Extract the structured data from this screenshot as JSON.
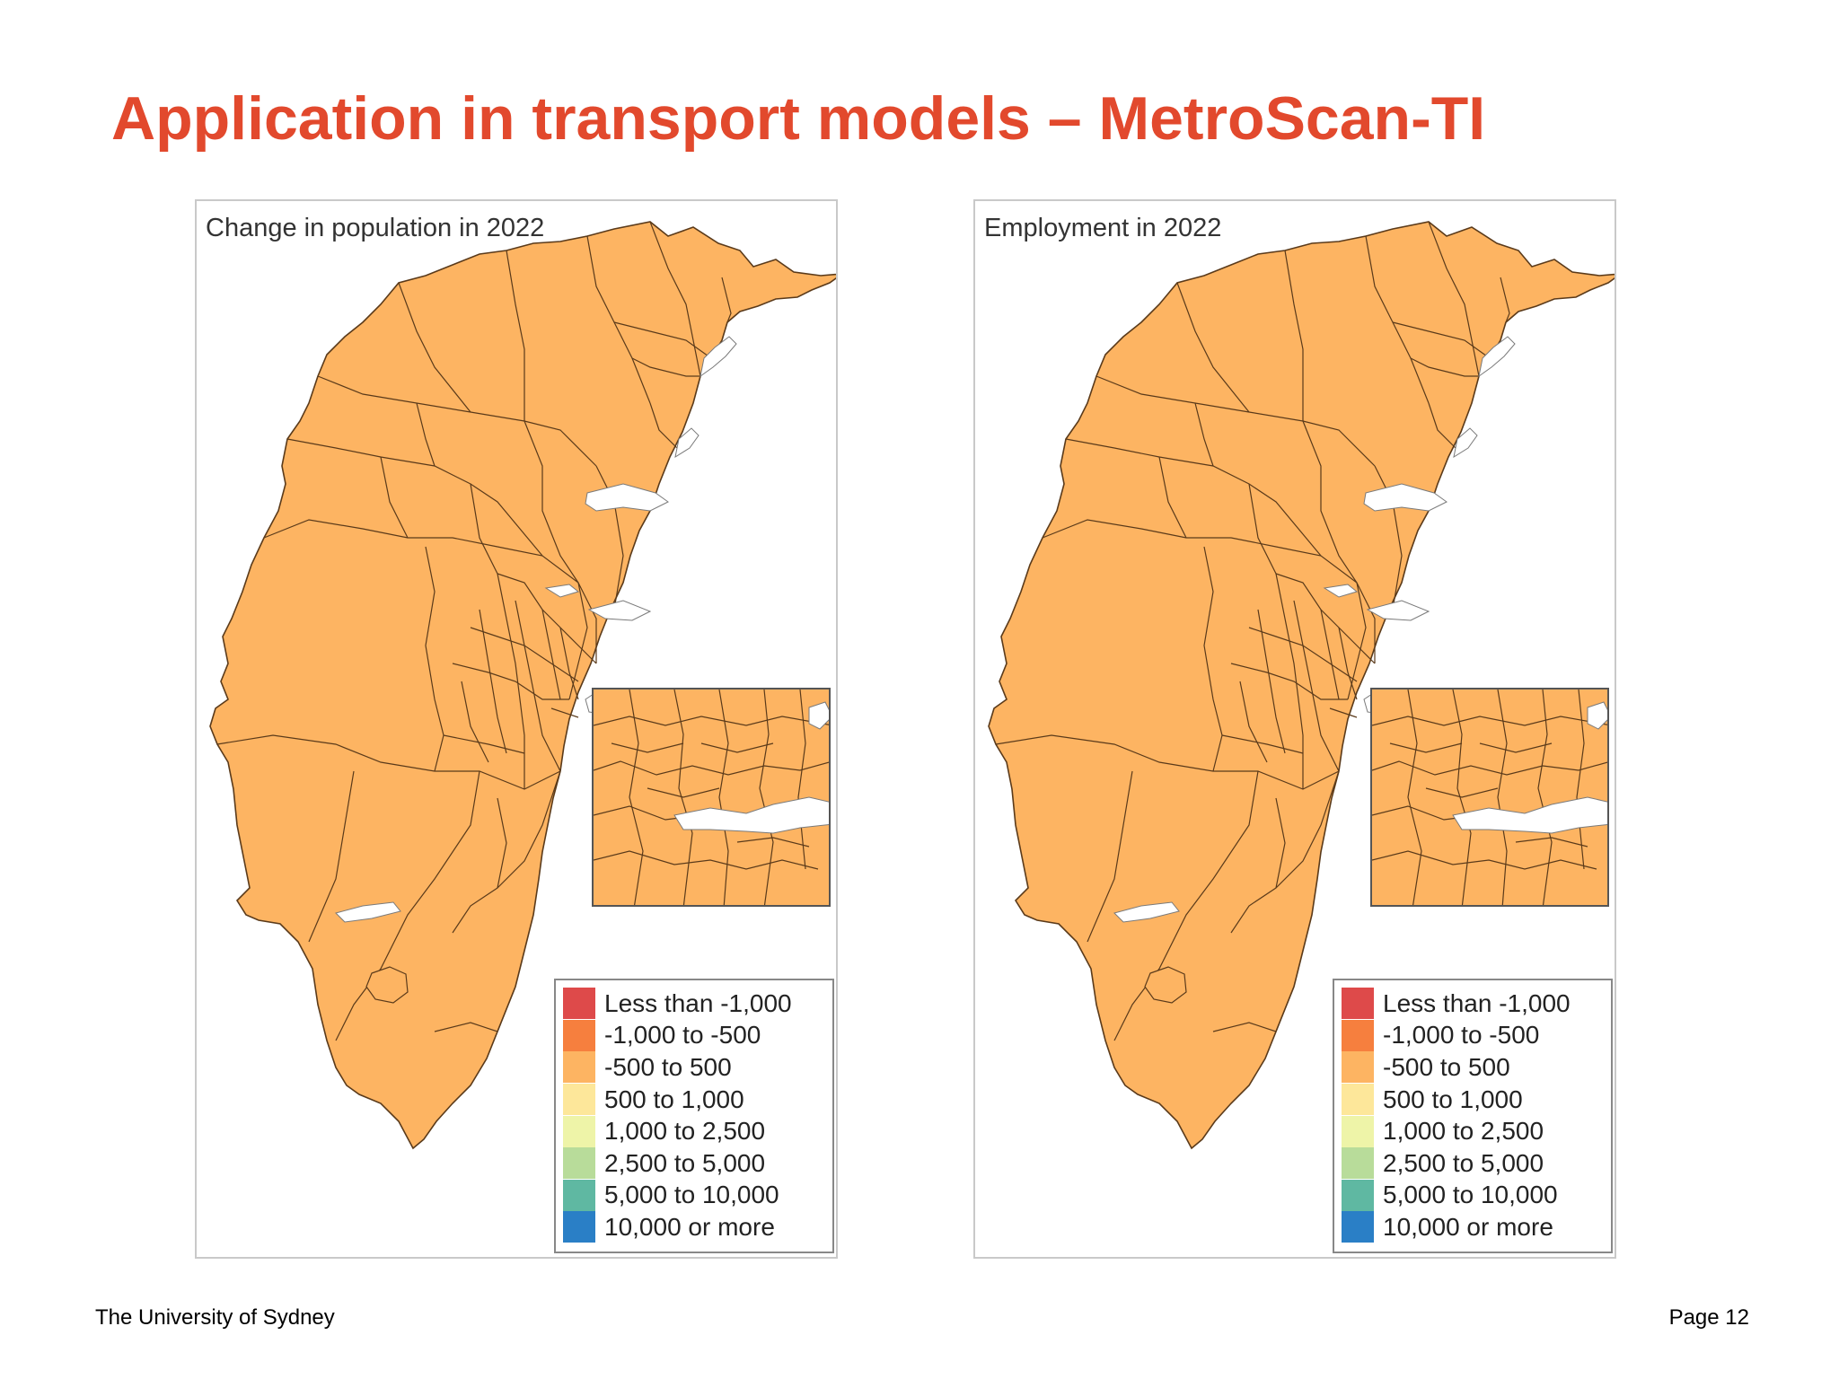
{
  "slide": {
    "title": "Application in transport models – MetroScan-TI",
    "footer_left": "The University of Sydney",
    "footer_right": "Page 12"
  },
  "colors": {
    "title": "#e2492d",
    "region_fill": "#fdb462",
    "border": "#5a3a1a",
    "water": "#ffffff"
  },
  "legend": {
    "items": [
      {
        "label": "Less than -1,000",
        "color": "#de4a4a"
      },
      {
        "label": "-1,000 to -500",
        "color": "#f67f3e"
      },
      {
        "label": "-500 to 500",
        "color": "#fdb462"
      },
      {
        "label": "500 to 1,000",
        "color": "#fde79a"
      },
      {
        "label": "1,000 to 2,500",
        "color": "#eef4a8"
      },
      {
        "label": "2,500 to 5,000",
        "color": "#b8dc9a"
      },
      {
        "label": "5,000 to 10,000",
        "color": "#5fb8a2"
      },
      {
        "label": "10,000 or more",
        "color": "#2a7fc6"
      }
    ]
  },
  "maps": [
    {
      "title": "Change in population in 2022",
      "category_shown": "-500 to 500"
    },
    {
      "title": "Employment in 2022",
      "category_shown": "-500 to 500"
    }
  ]
}
